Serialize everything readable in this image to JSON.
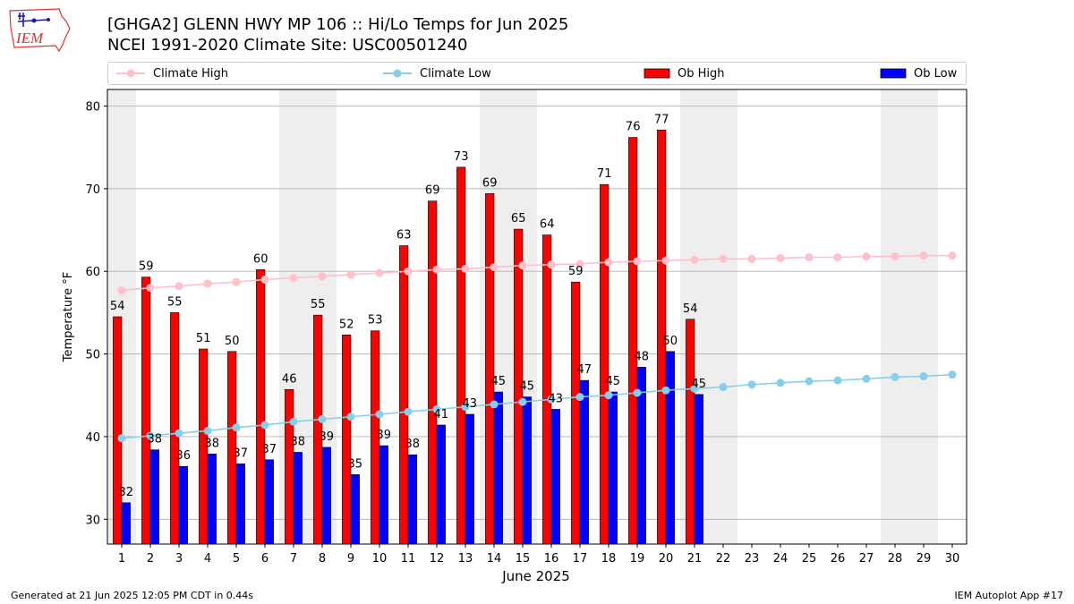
{
  "page": {
    "title_line1": "[GHGA2] GLENN HWY MP 106 :: Hi/Lo Temps for Jun 2025",
    "title_line2": "NCEI 1991-2020 Climate Site: USC00501240",
    "logo_text": "IEM",
    "footer_left": "Generated at 21 Jun 2025 12:05 PM CDT in 0.44s",
    "footer_right": "IEM Autoplot App #17"
  },
  "legend": {
    "climate_high": "Climate High",
    "climate_low": "Climate Low",
    "ob_high": "Ob High",
    "ob_low": "Ob Low"
  },
  "colors": {
    "ob_high": "#ff0000",
    "ob_low": "#0000ff",
    "climate_high": "#ffc0cb",
    "climate_low": "#87ceeb",
    "weekend_band": "#eeeeee",
    "grid": "#b0b0b0"
  },
  "chart_data": {
    "type": "bar",
    "xlabel": "June 2025",
    "ylabel": "Temperature °F",
    "ylim": [
      27,
      82
    ],
    "yticks": [
      30,
      40,
      50,
      60,
      70,
      80
    ],
    "grid": "horizontal",
    "legend_position": "top",
    "days": [
      1,
      2,
      3,
      4,
      5,
      6,
      7,
      8,
      9,
      10,
      11,
      12,
      13,
      14,
      15,
      16,
      17,
      18,
      19,
      20,
      21,
      22,
      23,
      24,
      25,
      26,
      27,
      28,
      29,
      30
    ],
    "weekend_days": [
      1,
      7,
      8,
      14,
      15,
      21,
      22,
      28,
      29
    ],
    "series": [
      {
        "name": "Ob High",
        "kind": "bar",
        "values": [
          54.5,
          59.3,
          55.0,
          50.6,
          50.3,
          60.2,
          45.7,
          54.7,
          52.3,
          52.8,
          63.1,
          68.5,
          72.6,
          69.4,
          65.1,
          64.4,
          58.7,
          70.5,
          76.2,
          77.1,
          54.2
        ],
        "labels": [
          "54",
          "59",
          "55",
          "51",
          "50",
          "60",
          "46",
          "55",
          "52",
          "53",
          "63",
          "69",
          "73",
          "69",
          "65",
          "64",
          "59",
          "71",
          "76",
          "77",
          "54"
        ]
      },
      {
        "name": "Ob Low",
        "kind": "bar",
        "values": [
          32.0,
          38.4,
          36.4,
          37.9,
          36.7,
          37.2,
          38.1,
          38.7,
          35.4,
          38.9,
          37.8,
          41.4,
          42.7,
          45.4,
          44.8,
          43.3,
          46.8,
          45.4,
          48.4,
          50.3,
          45.1
        ],
        "labels": [
          "32",
          "38",
          "36",
          "38",
          "37",
          "37",
          "38",
          "39",
          "35",
          "39",
          "38",
          "41",
          "43",
          "45",
          "45",
          "43",
          "47",
          "45",
          "48",
          "50",
          "45"
        ]
      },
      {
        "name": "Climate High",
        "kind": "line",
        "values": [
          57.7,
          58.0,
          58.2,
          58.5,
          58.7,
          59.0,
          59.2,
          59.4,
          59.6,
          59.8,
          60.0,
          60.2,
          60.3,
          60.5,
          60.7,
          60.8,
          60.9,
          61.1,
          61.2,
          61.3,
          61.4,
          61.5,
          61.5,
          61.6,
          61.7,
          61.7,
          61.8,
          61.8,
          61.9,
          61.9
        ]
      },
      {
        "name": "Climate Low",
        "kind": "line",
        "values": [
          39.8,
          40.1,
          40.4,
          40.7,
          41.1,
          41.4,
          41.8,
          42.1,
          42.4,
          42.7,
          43.0,
          43.3,
          43.6,
          43.9,
          44.2,
          44.5,
          44.8,
          45.0,
          45.3,
          45.6,
          45.8,
          46.0,
          46.3,
          46.5,
          46.7,
          46.8,
          47.0,
          47.2,
          47.3,
          47.5
        ]
      }
    ]
  }
}
